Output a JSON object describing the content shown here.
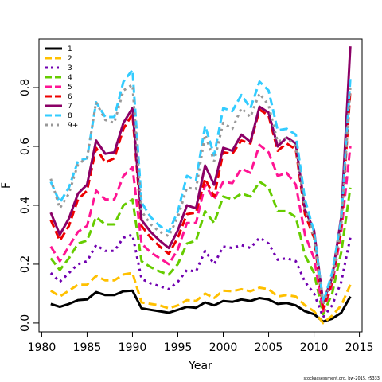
{
  "chart_data": {
    "type": "line",
    "title": "",
    "xlabel": "Year",
    "ylabel": "F",
    "xlim": [
      1981,
      2014
    ],
    "ylim": [
      0,
      0.85
    ],
    "xticks": [
      1980,
      1985,
      1990,
      1995,
      2000,
      2005,
      2010,
      2015
    ],
    "yticks": [
      0.0,
      0.2,
      0.4,
      0.6,
      0.8
    ],
    "grid": false,
    "legend_position": "top-left",
    "x": [
      1981,
      1982,
      1983,
      1984,
      1985,
      1986,
      1987,
      1988,
      1989,
      1990,
      1991,
      1992,
      1993,
      1994,
      1995,
      1996,
      1997,
      1998,
      1999,
      2000,
      2001,
      2002,
      2003,
      2004,
      2005,
      2006,
      2007,
      2008,
      2009,
      2010,
      2011,
      2012,
      2013,
      2014
    ],
    "series": [
      {
        "name": "1",
        "color": "#000000",
        "dash": "solid",
        "values": [
          0.065,
          0.055,
          0.065,
          0.078,
          0.08,
          0.105,
          0.095,
          0.095,
          0.108,
          0.11,
          0.05,
          0.045,
          0.04,
          0.035,
          0.045,
          0.055,
          0.052,
          0.07,
          0.06,
          0.075,
          0.072,
          0.08,
          0.075,
          0.085,
          0.08,
          0.065,
          0.068,
          0.06,
          0.04,
          0.03,
          0.005,
          0.015,
          0.035,
          0.09
        ]
      },
      {
        "name": "2",
        "color": "#FFC000",
        "dash": "long",
        "values": [
          0.11,
          0.09,
          0.11,
          0.13,
          0.13,
          0.16,
          0.145,
          0.145,
          0.165,
          0.17,
          0.07,
          0.065,
          0.06,
          0.05,
          0.06,
          0.078,
          0.075,
          0.1,
          0.085,
          0.11,
          0.108,
          0.115,
          0.108,
          0.12,
          0.115,
          0.09,
          0.095,
          0.09,
          0.06,
          0.04,
          0.0,
          0.025,
          0.06,
          0.13
        ]
      },
      {
        "name": "3",
        "color": "#7000B0",
        "dash": "dot",
        "values": [
          0.17,
          0.14,
          0.17,
          0.2,
          0.21,
          0.265,
          0.245,
          0.245,
          0.29,
          0.3,
          0.15,
          0.135,
          0.125,
          0.115,
          0.14,
          0.18,
          0.175,
          0.245,
          0.2,
          0.26,
          0.255,
          0.265,
          0.255,
          0.29,
          0.27,
          0.215,
          0.22,
          0.21,
          0.14,
          0.1,
          0.02,
          0.06,
          0.14,
          0.29
        ]
      },
      {
        "name": "4",
        "color": "#66CC00",
        "dash": "long",
        "values": [
          0.22,
          0.18,
          0.22,
          0.27,
          0.28,
          0.36,
          0.335,
          0.335,
          0.4,
          0.42,
          0.21,
          0.19,
          0.175,
          0.165,
          0.2,
          0.27,
          0.28,
          0.38,
          0.34,
          0.43,
          0.42,
          0.44,
          0.43,
          0.48,
          0.46,
          0.38,
          0.38,
          0.36,
          0.23,
          0.17,
          0.03,
          0.1,
          0.24,
          0.46
        ]
      },
      {
        "name": "5",
        "color": "#FF1493",
        "dash": "long",
        "values": [
          0.26,
          0.21,
          0.26,
          0.31,
          0.33,
          0.45,
          0.42,
          0.42,
          0.5,
          0.53,
          0.27,
          0.24,
          0.22,
          0.2,
          0.25,
          0.34,
          0.34,
          0.47,
          0.42,
          0.48,
          0.475,
          0.525,
          0.51,
          0.605,
          0.58,
          0.5,
          0.51,
          0.47,
          0.3,
          0.22,
          0.04,
          0.13,
          0.31,
          0.6
        ]
      },
      {
        "name": "6",
        "color": "#EE0000",
        "dash": "long",
        "values": [
          0.35,
          0.28,
          0.33,
          0.42,
          0.45,
          0.595,
          0.545,
          0.56,
          0.66,
          0.71,
          0.33,
          0.29,
          0.26,
          0.235,
          0.29,
          0.37,
          0.375,
          0.49,
          0.43,
          0.58,
          0.575,
          0.62,
          0.61,
          0.725,
          0.705,
          0.585,
          0.61,
          0.59,
          0.37,
          0.29,
          0.05,
          0.14,
          0.33,
          0.79
        ]
      },
      {
        "name": "7",
        "color": "#8B0066",
        "dash": "solid",
        "values": [
          0.375,
          0.3,
          0.355,
          0.44,
          0.47,
          0.62,
          0.575,
          0.58,
          0.68,
          0.73,
          0.35,
          0.31,
          0.28,
          0.255,
          0.315,
          0.4,
          0.39,
          0.535,
          0.47,
          0.595,
          0.585,
          0.64,
          0.615,
          0.735,
          0.715,
          0.6,
          0.63,
          0.61,
          0.385,
          0.315,
          0.07,
          0.155,
          0.36,
          0.94
        ]
      },
      {
        "name": "8",
        "color": "#33CCFF",
        "dash": "long",
        "values": [
          0.48,
          0.41,
          0.46,
          0.55,
          0.56,
          0.75,
          0.7,
          0.7,
          0.82,
          0.86,
          0.41,
          0.36,
          0.33,
          0.31,
          0.38,
          0.5,
          0.485,
          0.67,
          0.57,
          0.73,
          0.72,
          0.775,
          0.73,
          0.82,
          0.79,
          0.655,
          0.66,
          0.64,
          0.42,
          0.31,
          0.07,
          0.17,
          0.35,
          0.83
        ]
      },
      {
        "name": "9+",
        "color": "#999999",
        "dash": "dot",
        "values": [
          0.49,
          0.39,
          0.44,
          0.54,
          0.56,
          0.75,
          0.69,
          0.68,
          0.79,
          0.81,
          0.38,
          0.335,
          0.31,
          0.295,
          0.36,
          0.46,
          0.455,
          0.64,
          0.55,
          0.68,
          0.66,
          0.73,
          0.7,
          0.78,
          0.74,
          0.615,
          0.63,
          0.6,
          0.39,
          0.29,
          0.06,
          0.15,
          0.33,
          0.8
        ]
      }
    ]
  },
  "credit": "stockassessment.org, bw-2015, r5333"
}
